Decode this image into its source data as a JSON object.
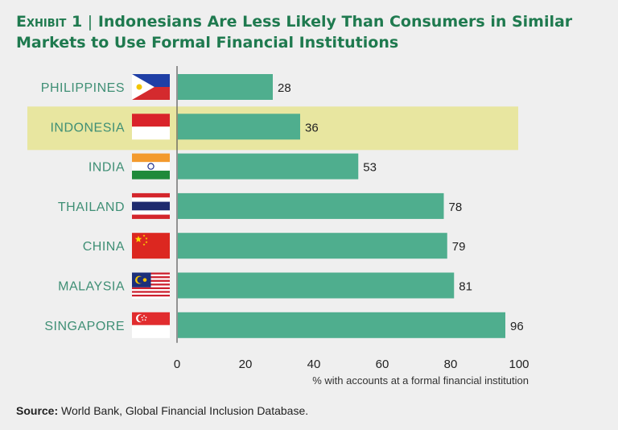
{
  "title": {
    "exhibit": "Exhibit 1",
    "separator": "|",
    "text": "Indonesians Are Less Likely Than Consumers in Similar Markets to Use Formal Financial Institutions"
  },
  "source": {
    "label": "Source:",
    "text": "World Bank, Global Financial Inclusion Database."
  },
  "colors": {
    "bar": "#4fae8e",
    "highlight": "#e8e6a0",
    "category_text": "#3f8f75",
    "axis": "#555555",
    "title": "#1f7a4f"
  },
  "chart_data": {
    "type": "bar",
    "orientation": "horizontal",
    "categories": [
      "PHILIPPINES",
      "INDONESIA",
      "INDIA",
      "THAILAND",
      "CHINA",
      "MALAYSIA",
      "SINGAPORE"
    ],
    "values": [
      28,
      36,
      53,
      78,
      79,
      81,
      96
    ],
    "data_labels": [
      "28",
      "36",
      "53",
      "78",
      "79",
      "81",
      "96"
    ],
    "highlighted_category": "INDONESIA",
    "flags": [
      "philippines-flag-icon",
      "indonesia-flag-icon",
      "india-flag-icon",
      "thailand-flag-icon",
      "china-flag-icon",
      "malaysia-flag-icon",
      "singapore-flag-icon"
    ],
    "xlim": [
      0,
      100
    ],
    "xticks": [
      0,
      20,
      40,
      60,
      80,
      100
    ],
    "xtick_labels": [
      "0",
      "20",
      "40",
      "60",
      "80",
      "100"
    ],
    "xlabel": "% with accounts at a formal financial institution",
    "grid": false
  }
}
